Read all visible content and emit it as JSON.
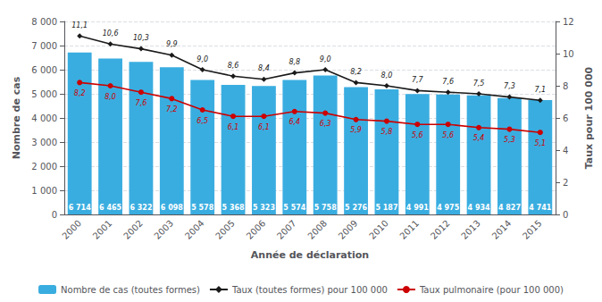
{
  "chart_data": {
    "type": "bar",
    "xlabel": "Année de déclaration",
    "ylabel": "Nombre de cas",
    "y2label": "Taux pour 100 000",
    "categories": [
      "2000",
      "2001",
      "2002",
      "2003",
      "2004",
      "2005",
      "2006",
      "2007",
      "2008",
      "2009",
      "2010",
      "2011",
      "2012",
      "2013",
      "2014",
      "2015"
    ],
    "series": [
      {
        "name": "Nombre de cas (toutes formes)",
        "type": "bar",
        "color": "#3aade0",
        "values": [
          6714,
          6465,
          6322,
          6098,
          5578,
          5368,
          5323,
          5574,
          5758,
          5276,
          5187,
          4991,
          4975,
          4934,
          4827,
          4741
        ],
        "value_labels": [
          "6 714",
          "6 465",
          "6 322",
          "6 098",
          "5 578",
          "5 368",
          "5 323",
          "5 574",
          "5 758",
          "5 276",
          "5 187",
          "4 991",
          "4 975",
          "4 934",
          "4 827",
          "4 741"
        ]
      },
      {
        "name": "Taux (toutes formes) pour 100 000",
        "type": "line",
        "color": "#1a1a1a",
        "marker": "diamond",
        "axis": "y2",
        "values": [
          11.1,
          10.6,
          10.3,
          9.9,
          9.0,
          8.6,
          8.4,
          8.8,
          9.0,
          8.2,
          8.0,
          7.7,
          7.6,
          7.5,
          7.3,
          7.1
        ],
        "value_labels": [
          "11,1",
          "10,6",
          "10,3",
          "9,9",
          "9,0",
          "8,6",
          "8,4",
          "8,8",
          "9,0",
          "8,2",
          "8,0",
          "7,7",
          "7,6",
          "7,5",
          "7,3",
          "7,1"
        ]
      },
      {
        "name": "Taux pulmonaire (pour 100 000)",
        "type": "line",
        "color": "#cc0000",
        "marker": "circle",
        "axis": "y2",
        "values": [
          8.2,
          8.0,
          7.6,
          7.2,
          6.5,
          6.1,
          6.1,
          6.4,
          6.3,
          5.9,
          5.8,
          5.6,
          5.6,
          5.4,
          5.3,
          5.1
        ],
        "value_labels": [
          "8,2",
          "8,0",
          "7,6",
          "7,2",
          "6,5",
          "6,1",
          "6,1",
          "6,4",
          "6,3",
          "5,9",
          "5,8",
          "5,6",
          "5,6",
          "5,4",
          "5,3",
          "5,1"
        ]
      }
    ],
    "ylim": [
      0,
      8000
    ],
    "yticks": [
      0,
      {
        "value": 1000,
        "label": "1 000"
      },
      {
        "value": 2000,
        "label": "2 000"
      },
      {
        "value": 3000,
        "label": "3 000"
      },
      {
        "value": 4000,
        "label": "4 000"
      },
      {
        "value": 5000,
        "label": "5 000"
      },
      {
        "value": 6000,
        "label": "6 000"
      },
      {
        "value": 7000,
        "label": "7 000"
      },
      {
        "value": 8000,
        "label": "8 000"
      }
    ],
    "y2lim": [
      0,
      12
    ],
    "y2ticks": [
      0,
      2,
      4,
      6,
      8,
      10,
      12
    ],
    "grid": true,
    "legend": "bottom",
    "data_labels": true
  }
}
